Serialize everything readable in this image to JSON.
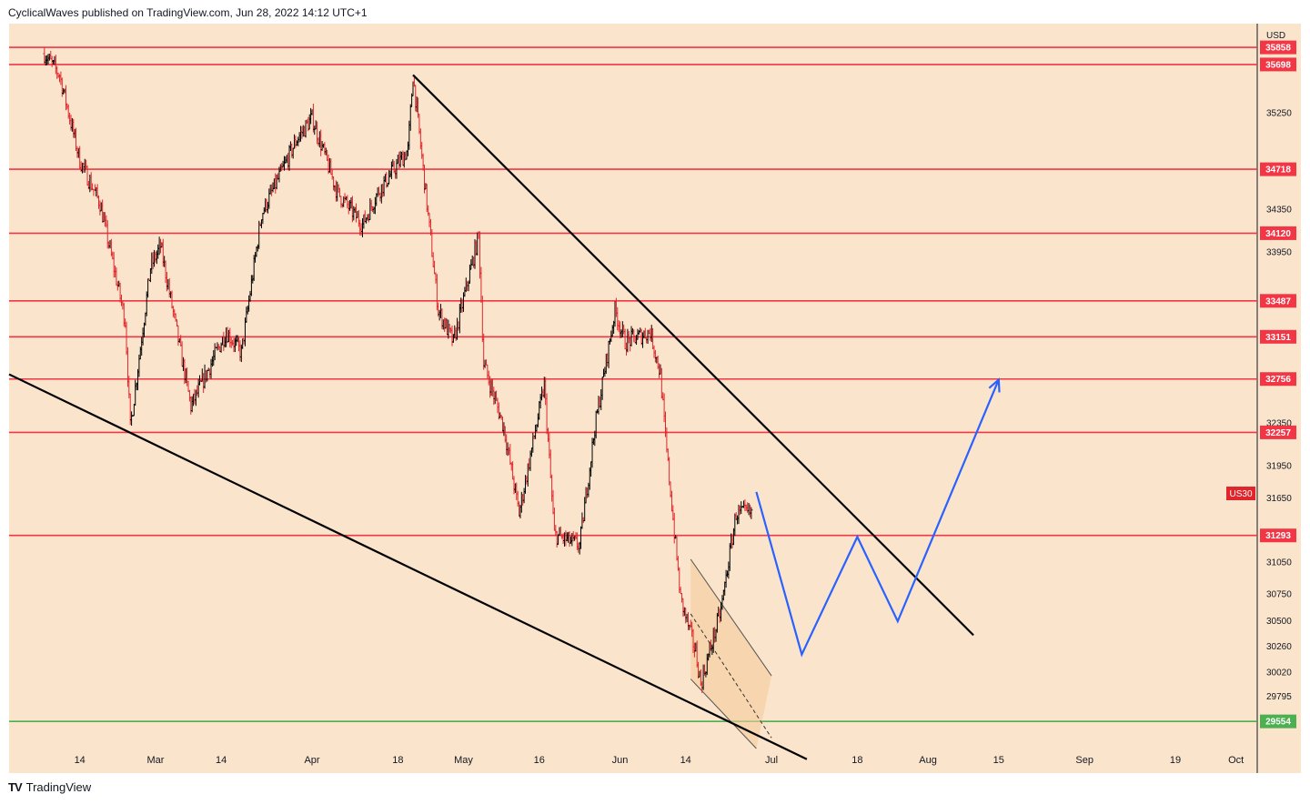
{
  "header": {
    "published_text": "CyclicalWaves published on TradingView.com, Jun 28, 2022 14:12 UTC+1"
  },
  "footer": {
    "brand": "TradingView"
  },
  "colors": {
    "background": "#fae5cc",
    "level_line": "#f23645",
    "support_line": "#4caf50",
    "trend_line": "#000000",
    "projection": "#2962ff",
    "candle_up": "#000000",
    "candle_down": "#e0252b"
  },
  "chart_data": {
    "type": "candlestick",
    "symbol": "US30",
    "currency": "USD",
    "current_price_label": "US30",
    "ylim": [
      29300,
      36080
    ],
    "x_tick_labels": [
      "14",
      "Mar",
      "14",
      "Apr",
      "18",
      "May",
      "16",
      "Jun",
      "14",
      "Jul",
      "18",
      "Aug",
      "15",
      "Sep",
      "19",
      "Oct"
    ],
    "y_tick_labels": [
      "35250",
      "34350",
      "33950",
      "32350",
      "31950",
      "31650",
      "31050",
      "30750",
      "30500",
      "30260",
      "30020",
      "29795"
    ],
    "horizontal_levels": [
      {
        "label": "35858",
        "value": 35858,
        "kind": "resistance"
      },
      {
        "label": "35698",
        "value": 35698,
        "kind": "resistance"
      },
      {
        "label": "34718",
        "value": 34718,
        "kind": "resistance"
      },
      {
        "label": "34120",
        "value": 34120,
        "kind": "resistance"
      },
      {
        "label": "33487",
        "value": 33487,
        "kind": "resistance"
      },
      {
        "label": "33151",
        "value": 33151,
        "kind": "resistance"
      },
      {
        "label": "32756",
        "value": 32756,
        "kind": "resistance"
      },
      {
        "label": "32257",
        "value": 32257,
        "kind": "resistance"
      },
      {
        "label": "31293",
        "value": 31293,
        "kind": "resistance"
      },
      {
        "label": "29554",
        "value": 29554,
        "kind": "support"
      }
    ],
    "price_path": [
      {
        "date": "2022-02-07",
        "close": 35800
      },
      {
        "date": "2022-02-10",
        "close": 35600
      },
      {
        "date": "2022-02-14",
        "close": 34800
      },
      {
        "date": "2022-02-18",
        "close": 34400
      },
      {
        "date": "2022-02-23",
        "close": 33300
      },
      {
        "date": "2022-02-24",
        "close": 32300
      },
      {
        "date": "2022-02-28",
        "close": 33800
      },
      {
        "date": "2022-03-02",
        "close": 34000
      },
      {
        "date": "2022-03-08",
        "close": 32500
      },
      {
        "date": "2022-03-15",
        "close": 33200
      },
      {
        "date": "2022-03-18",
        "close": 33000
      },
      {
        "date": "2022-03-22",
        "close": 34300
      },
      {
        "date": "2022-03-29",
        "close": 35000
      },
      {
        "date": "2022-04-01",
        "close": 35200
      },
      {
        "date": "2022-04-06",
        "close": 34500
      },
      {
        "date": "2022-04-11",
        "close": 34200
      },
      {
        "date": "2022-04-14",
        "close": 34500
      },
      {
        "date": "2022-04-20",
        "close": 34900
      },
      {
        "date": "2022-04-21",
        "close": 35600
      },
      {
        "date": "2022-04-26",
        "close": 33400
      },
      {
        "date": "2022-04-29",
        "close": 33100
      },
      {
        "date": "2022-05-04",
        "close": 34100
      },
      {
        "date": "2022-05-05",
        "close": 32900
      },
      {
        "date": "2022-05-09",
        "close": 32300
      },
      {
        "date": "2022-05-12",
        "close": 31500
      },
      {
        "date": "2022-05-17",
        "close": 32700
      },
      {
        "date": "2022-05-19",
        "close": 31300
      },
      {
        "date": "2022-05-24",
        "close": 31200
      },
      {
        "date": "2022-05-27",
        "close": 32300
      },
      {
        "date": "2022-05-31",
        "close": 33400
      },
      {
        "date": "2022-06-02",
        "close": 33100
      },
      {
        "date": "2022-06-07",
        "close": 33200
      },
      {
        "date": "2022-06-09",
        "close": 32800
      },
      {
        "date": "2022-06-10",
        "close": 32200
      },
      {
        "date": "2022-06-13",
        "close": 30700
      },
      {
        "date": "2022-06-16",
        "close": 30200
      },
      {
        "date": "2022-06-17",
        "close": 29900
      },
      {
        "date": "2022-06-21",
        "close": 30600
      },
      {
        "date": "2022-06-24",
        "close": 31500
      },
      {
        "date": "2022-06-27",
        "close": 31500
      }
    ],
    "trend_lines": [
      {
        "name": "descending-resistance",
        "from": {
          "date": "2022-04-21",
          "price": 35600
        },
        "to": {
          "date": "2022-08-10",
          "price": 30360
        }
      },
      {
        "name": "descending-support",
        "from": {
          "date": "2022-01-31",
          "price": 32800
        },
        "to": {
          "date": "2022-07-08",
          "price": 29200
        }
      }
    ],
    "projection_path": [
      {
        "date": "2022-06-28",
        "price": 31700
      },
      {
        "date": "2022-07-07",
        "price": 30180
      },
      {
        "date": "2022-07-18",
        "price": 31280
      },
      {
        "date": "2022-07-26",
        "price": 30490
      },
      {
        "date": "2022-08-15",
        "price": 32750
      }
    ]
  }
}
